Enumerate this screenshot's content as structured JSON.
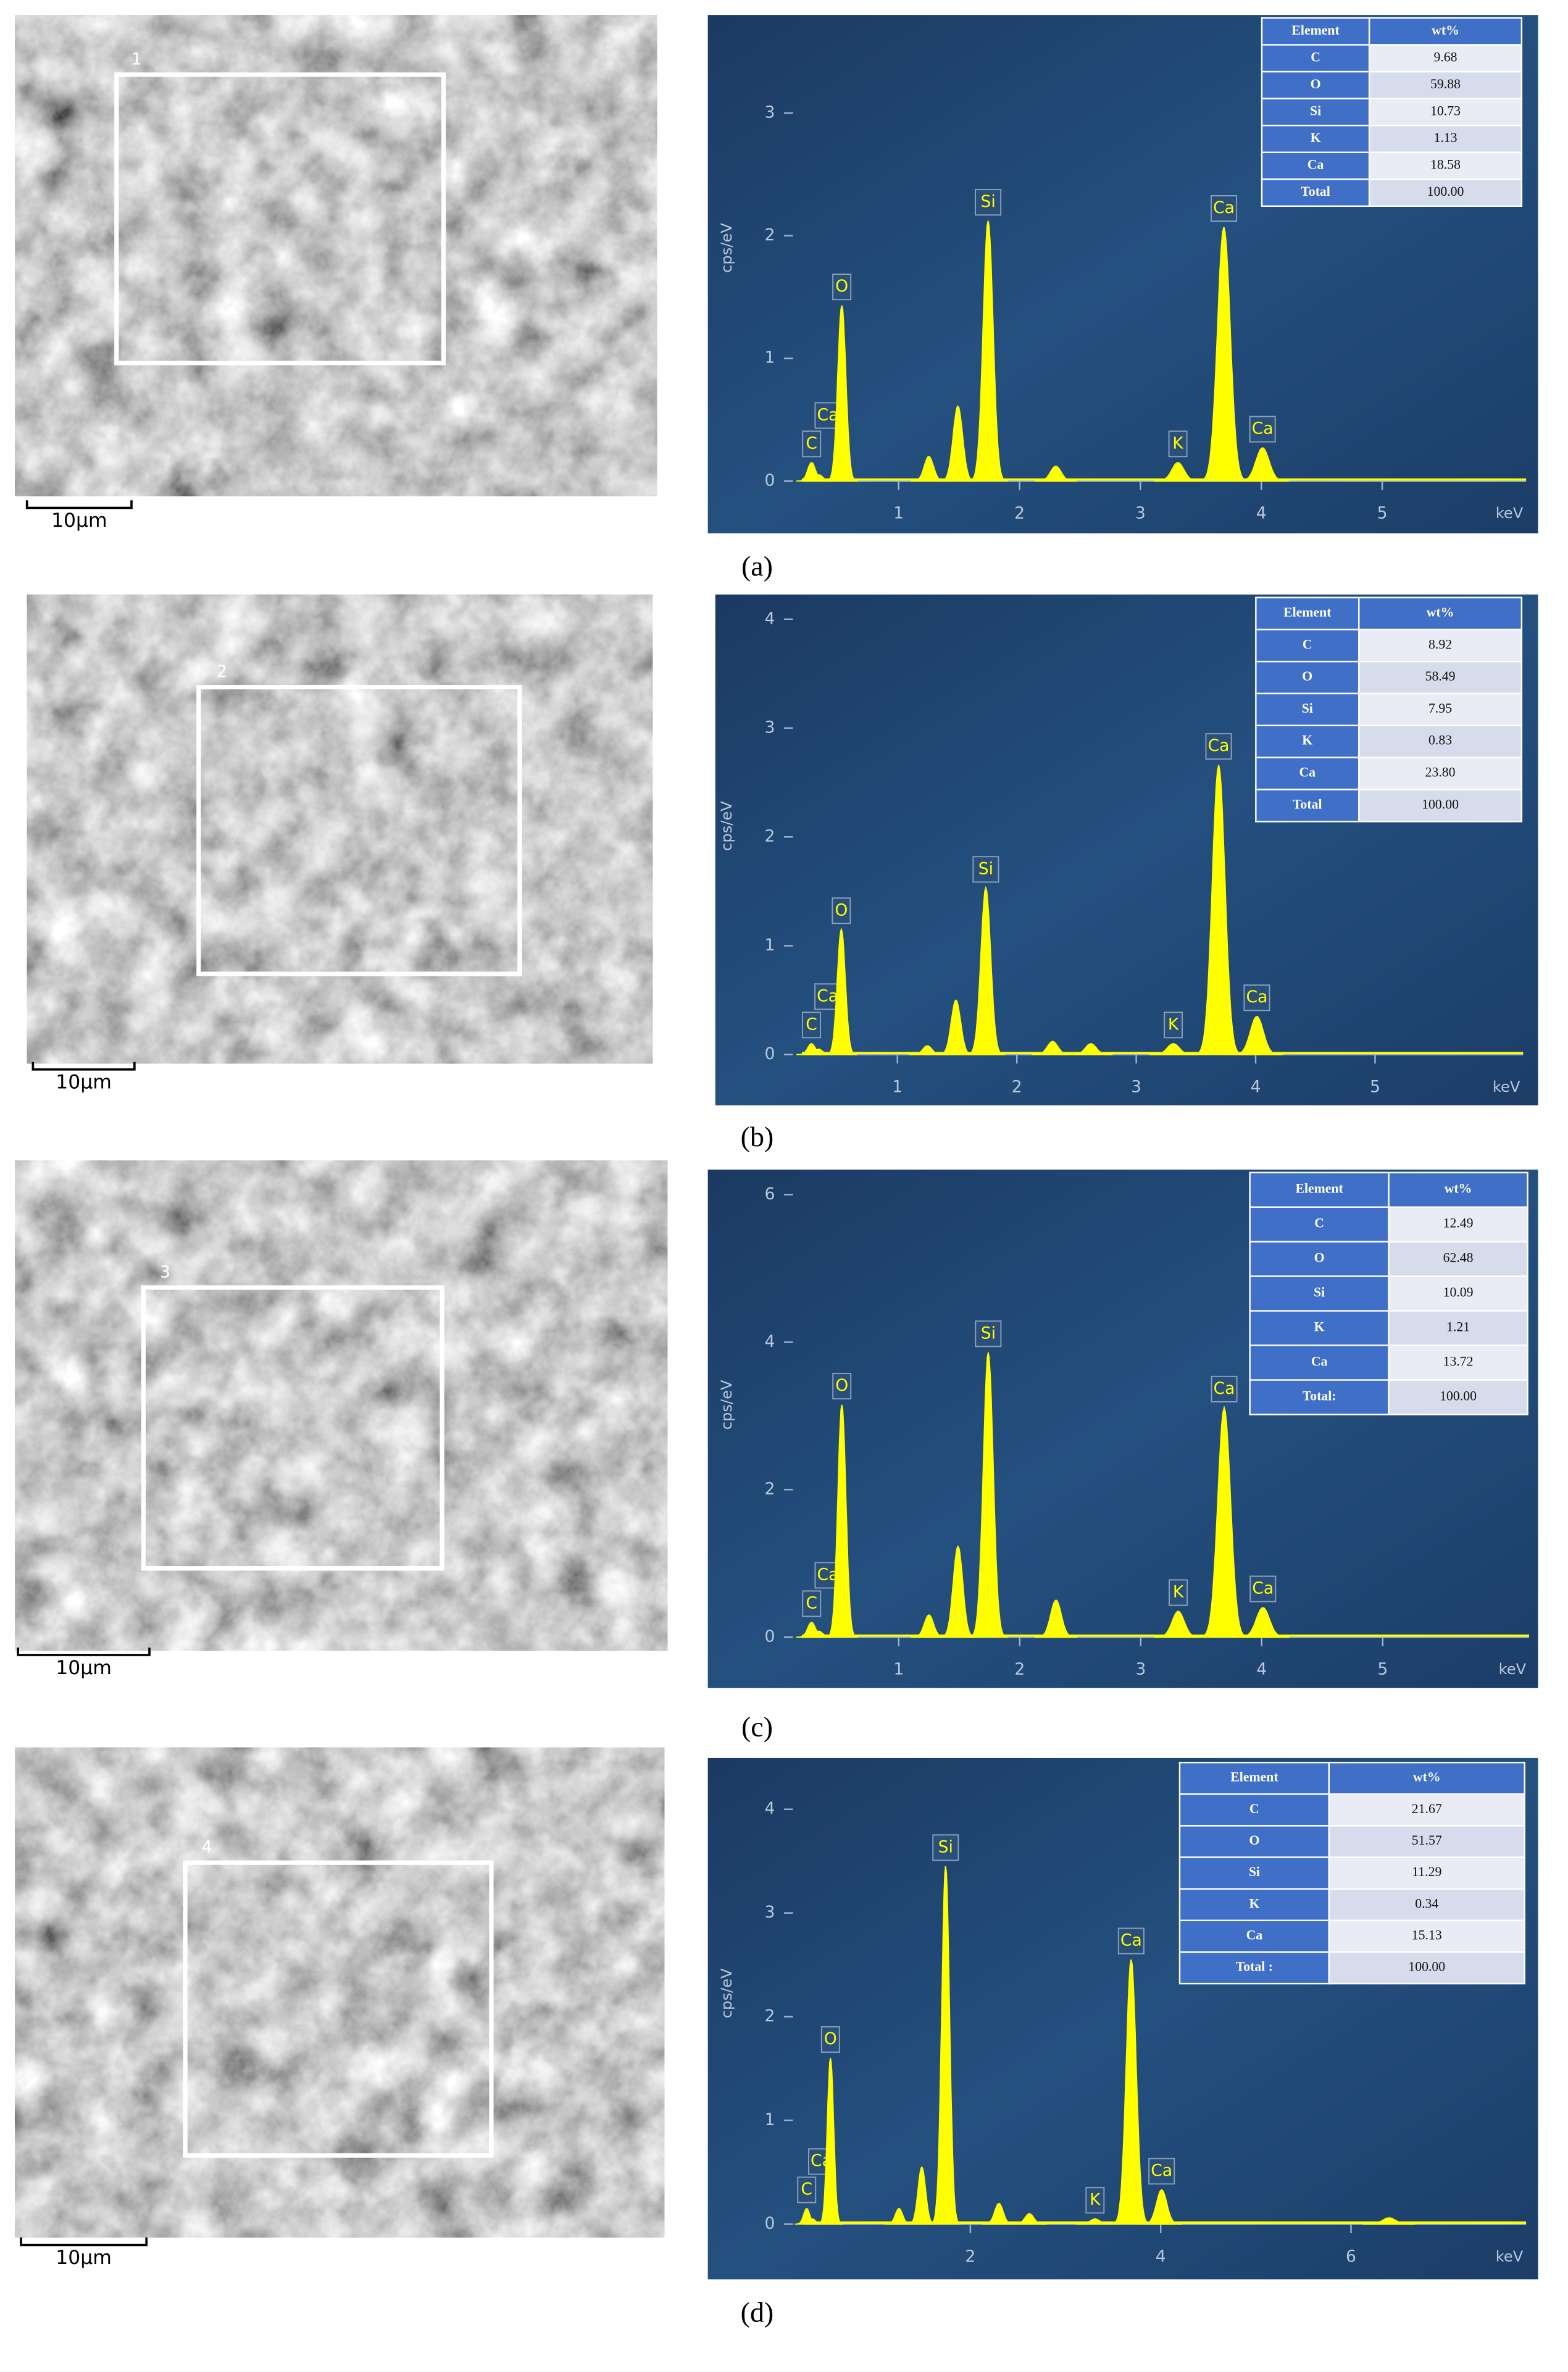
{
  "chart_data": [
    {
      "type": "area",
      "caption": "(a)",
      "y_label": "cps/eV",
      "x_label": "keV",
      "color": "#ffff00",
      "xlim": [
        0.2,
        6.19
      ],
      "ylim": [
        0,
        3.8
      ],
      "xticks": [
        1,
        2,
        3,
        4,
        5
      ],
      "yticks": [
        0,
        1,
        2,
        3
      ],
      "peaks": {
        "x": [
          0.28,
          0.34,
          0.53,
          1.25,
          1.49,
          1.74,
          2.3,
          3.31,
          3.69,
          4.01
        ],
        "values": [
          0.15,
          0.05,
          1.43,
          0.2,
          0.61,
          2.12,
          0.12,
          0.15,
          2.07,
          0.27
        ],
        "labels": [
          "C",
          "Ca",
          "O",
          null,
          null,
          "Si",
          null,
          "K",
          "Ca",
          "Ca"
        ]
      },
      "table": {
        "header": [
          "Element",
          "wt%"
        ],
        "rows": [
          [
            "C",
            "9.68"
          ],
          [
            "O",
            "59.88"
          ],
          [
            "Si",
            "10.73"
          ],
          [
            "K",
            "1.13"
          ],
          [
            "Ca",
            "18.58"
          ],
          [
            "Total",
            "100.00"
          ]
        ]
      },
      "sem": {
        "region": "1",
        "scale_label": "10μm"
      }
    },
    {
      "type": "area",
      "caption": "(b)",
      "y_label": "cps/eV",
      "x_label": "keV",
      "color": "#ffff00",
      "xlim": [
        0.2,
        6.24
      ],
      "ylim": [
        0,
        4.2
      ],
      "xticks": [
        1,
        2,
        3,
        4,
        5
      ],
      "yticks": [
        0,
        1,
        2,
        3,
        4
      ],
      "peaks": {
        "x": [
          0.28,
          0.34,
          0.53,
          1.25,
          1.49,
          1.74,
          2.3,
          2.62,
          3.31,
          3.69,
          4.01
        ],
        "values": [
          0.1,
          0.05,
          1.15,
          0.08,
          0.5,
          1.53,
          0.12,
          0.1,
          0.1,
          2.66,
          0.35
        ],
        "labels": [
          "C",
          "Ca",
          "O",
          null,
          null,
          "Si",
          null,
          null,
          "K",
          "Ca",
          "Ca"
        ]
      },
      "table": {
        "header": [
          "Element",
          "wt%"
        ],
        "rows": [
          [
            "C",
            "8.92"
          ],
          [
            "O",
            "58.49"
          ],
          [
            "Si",
            "7.95"
          ],
          [
            "K",
            "0.83"
          ],
          [
            "Ca",
            "23.80"
          ],
          [
            "Total",
            "100.00"
          ]
        ]
      },
      "sem": {
        "region": "2",
        "scale_label": "10μm"
      }
    },
    {
      "type": "area",
      "caption": "(c)",
      "y_label": "cps/eV",
      "x_label": "keV",
      "color": "#ffff00",
      "xlim": [
        0.2,
        6.21
      ],
      "ylim": [
        0,
        6.3
      ],
      "xticks": [
        1,
        2,
        3,
        4,
        5
      ],
      "yticks": [
        0,
        2,
        4,
        6
      ],
      "peaks": {
        "x": [
          0.28,
          0.34,
          0.53,
          1.25,
          1.49,
          1.74,
          2.3,
          3.31,
          3.69,
          4.01
        ],
        "values": [
          0.2,
          0.08,
          3.15,
          0.3,
          1.23,
          3.86,
          0.5,
          0.35,
          3.11,
          0.4
        ],
        "labels": [
          "C",
          "Ca",
          "O",
          null,
          null,
          "Si",
          null,
          "K",
          "Ca",
          "Ca"
        ]
      },
      "table": {
        "header": [
          "Element",
          "wt%"
        ],
        "rows": [
          [
            "C",
            "12.49"
          ],
          [
            "O",
            "62.48"
          ],
          [
            "Si",
            "10.09"
          ],
          [
            "K",
            "1.21"
          ],
          [
            "Ca",
            "13.72"
          ],
          [
            "Total:",
            "100.00"
          ]
        ]
      },
      "sem": {
        "region": "3",
        "scale_label": "10μm"
      }
    },
    {
      "type": "area",
      "caption": "(d)",
      "y_label": "cps/eV",
      "x_label": "keV",
      "color": "#ffff00",
      "xlim": [
        0.23,
        7.84
      ],
      "ylim": [
        0,
        4.45
      ],
      "xticks": [
        2,
        4,
        6
      ],
      "yticks": [
        0,
        1,
        2,
        3,
        4
      ],
      "peaks": {
        "x": [
          0.28,
          0.34,
          0.53,
          1.25,
          1.49,
          1.74,
          2.3,
          2.62,
          3.31,
          3.69,
          4.01,
          6.4
        ],
        "values": [
          0.15,
          0.05,
          1.6,
          0.15,
          0.55,
          3.45,
          0.2,
          0.1,
          0.05,
          2.55,
          0.33,
          0.06
        ],
        "labels": [
          "C",
          "Ca",
          "O",
          null,
          null,
          "Si",
          null,
          null,
          "K",
          "Ca",
          "Ca",
          null
        ]
      },
      "table": {
        "header": [
          "Element",
          "wt%"
        ],
        "rows": [
          [
            "C",
            "21.67"
          ],
          [
            "O",
            "51.57"
          ],
          [
            "Si",
            "11.29"
          ],
          [
            "K",
            "0.34"
          ],
          [
            "Ca",
            "15.13"
          ],
          [
            "Total :",
            "100.00"
          ]
        ]
      },
      "sem": {
        "region": "4",
        "scale_label": "10μm"
      }
    }
  ]
}
